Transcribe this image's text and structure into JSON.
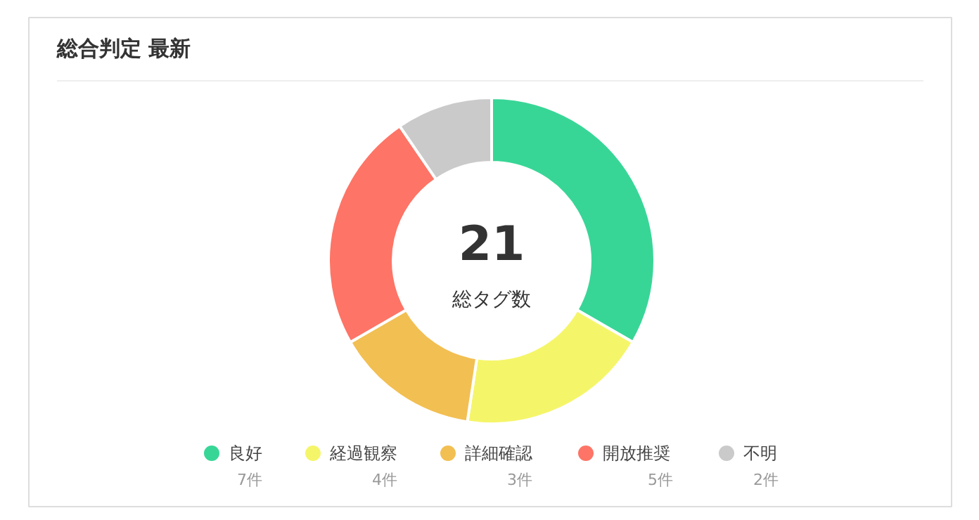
{
  "chart_data": {
    "type": "donut",
    "title": "総合判定 最新",
    "categories": [
      "良好",
      "経過観察",
      "詳細確認",
      "開放推奨",
      "不明"
    ],
    "values": [
      7,
      4,
      3,
      5,
      2
    ],
    "colors": [
      "#38d696",
      "#f5f56a",
      "#f2bf52",
      "#fe7466",
      "#cacaca"
    ],
    "value_labels": [
      "7件",
      "4件",
      "3件",
      "5件",
      "2件"
    ],
    "annotations": [
      "21",
      "総タグ数"
    ],
    "legend": "bottom"
  }
}
